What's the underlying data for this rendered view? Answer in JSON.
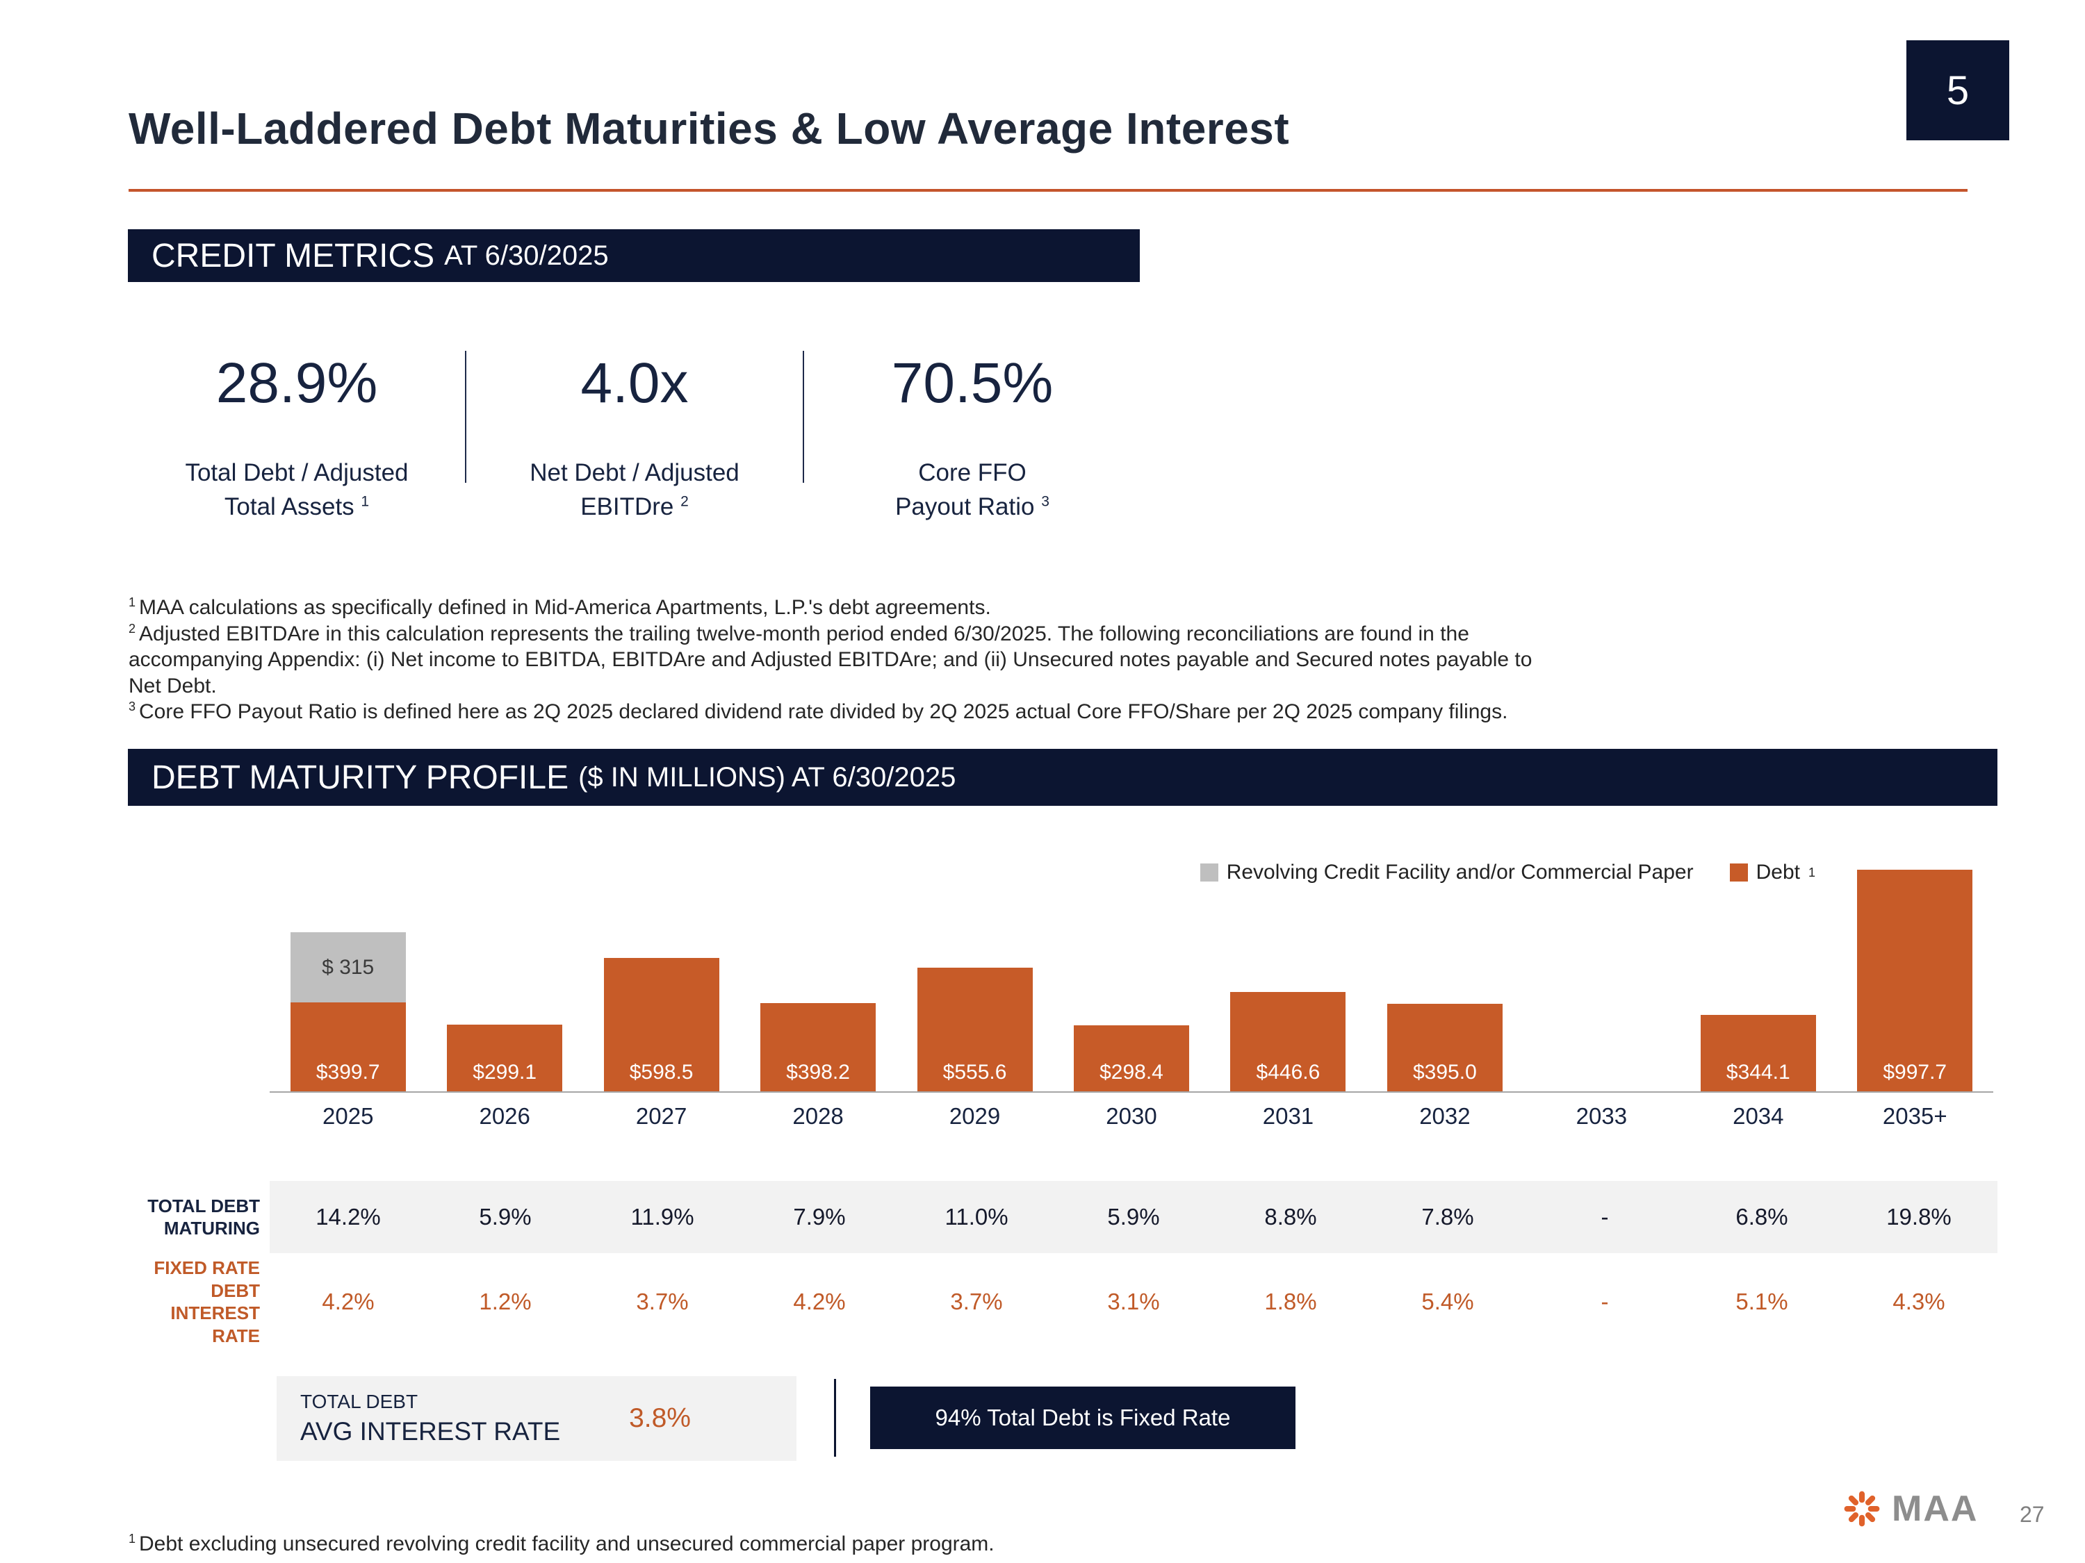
{
  "page": {
    "slide_number": "5",
    "title": "Well-Laddered Debt Maturities & Low Average Interest",
    "bottom_footnote_sup": "1",
    "bottom_footnote": "Debt excluding unsecured revolving credit facility and unsecured commercial paper program.",
    "logo_text": "MAA",
    "footer_page": "27"
  },
  "credit_metrics": {
    "header": "CREDIT METRICS",
    "header_suffix": "AT 6/30/2025",
    "metrics": [
      {
        "value": "28.9%",
        "label_line1": "Total Debt / Adjusted",
        "label_line2": "Total Assets",
        "sup": "1"
      },
      {
        "value": "4.0x",
        "label_line1": "Net Debt / Adjusted",
        "label_line2": "EBITDre",
        "sup": "2"
      },
      {
        "value": "70.5%",
        "label_line1": "Core FFO",
        "label_line2": "Payout Ratio",
        "sup": "3"
      }
    ],
    "footnotes": [
      {
        "sup": "1",
        "text": "MAA calculations as specifically defined in Mid-America Apartments, L.P.'s debt agreements."
      },
      {
        "sup": "2",
        "text": "Adjusted EBITDAre in this calculation represents the trailing twelve-month period ended 6/30/2025. The following reconciliations are found in the accompanying Appendix: (i) Net income to EBITDA, EBITDAre and Adjusted EBITDAre; and (ii) Unsecured notes payable and Secured notes payable to Net Debt."
      },
      {
        "sup": "3",
        "text": "Core FFO Payout Ratio is defined here as 2Q 2025 declared dividend rate divided by 2Q 2025 actual Core FFO/Share per 2Q 2025 company filings."
      }
    ]
  },
  "maturity": {
    "header": "DEBT MATURITY PROFILE",
    "header_suffix": "($ IN MILLIONS) AT 6/30/2025",
    "legend": [
      {
        "label": "Revolving Credit Facility and/or Commercial Paper",
        "color": "#BFBFBF"
      },
      {
        "label": "Debt",
        "sup": "1",
        "color": "#C75B28"
      }
    ]
  },
  "chart_data": {
    "type": "bar",
    "title": "Debt Maturity Profile ($ in millions) at 6/30/2025",
    "xlabel": "",
    "ylabel": "$ millions",
    "ylim": [
      0,
      1050
    ],
    "grid": false,
    "legend_position": "top-right",
    "categories": [
      "2025",
      "2026",
      "2027",
      "2028",
      "2029",
      "2030",
      "2031",
      "2032",
      "2033",
      "2034",
      "2035+"
    ],
    "series": [
      {
        "name": "Debt",
        "color": "#C75B28",
        "values": [
          399.7,
          299.1,
          598.5,
          398.2,
          555.6,
          298.4,
          446.6,
          395.0,
          0,
          344.1,
          997.7
        ],
        "labels": [
          "$399.7",
          "$299.1",
          "$598.5",
          "$398.2",
          "$555.6",
          "$298.4",
          "$446.6",
          "$395.0",
          "",
          "$344.1",
          "$997.7"
        ]
      },
      {
        "name": "Revolving Credit Facility and/or Commercial Paper",
        "color": "#BFBFBF",
        "values": [
          315,
          0,
          0,
          0,
          0,
          0,
          0,
          0,
          0,
          0,
          0
        ],
        "labels": [
          "$ 315",
          "",
          "",
          "",
          "",
          "",
          "",
          "",
          "",
          "",
          ""
        ]
      }
    ]
  },
  "table": {
    "rows": [
      {
        "label_lines": [
          "TOTAL DEBT",
          "MATURING"
        ],
        "values": [
          "14.2%",
          "5.9%",
          "11.9%",
          "7.9%",
          "11.0%",
          "5.9%",
          "8.8%",
          "7.8%",
          "-",
          "6.8%",
          "19.8%"
        ]
      },
      {
        "label_lines": [
          "FIXED RATE DEBT",
          "INTEREST RATE"
        ],
        "values": [
          "4.2%",
          "1.2%",
          "3.7%",
          "4.2%",
          "3.7%",
          "3.1%",
          "1.8%",
          "5.4%",
          "-",
          "5.1%",
          "4.3%"
        ]
      }
    ]
  },
  "summary": {
    "avg_label_line1": "TOTAL DEBT",
    "avg_label_line2": "AVG INTEREST RATE",
    "avg_value": "3.8%",
    "fixed_rate_banner": "94% Total Debt is Fixed Rate"
  }
}
